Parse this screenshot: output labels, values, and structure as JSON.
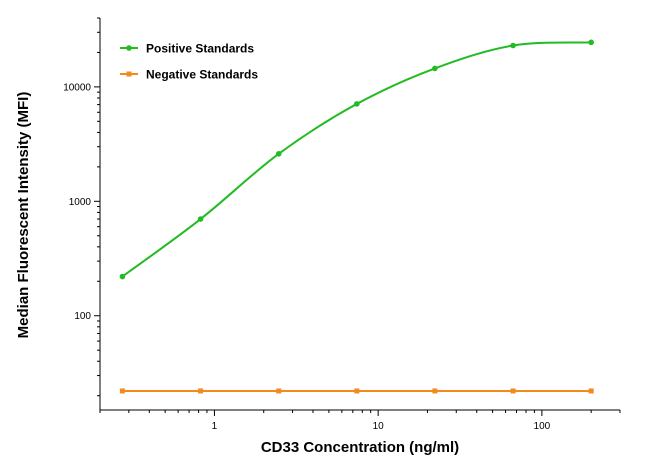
{
  "chart_data": {
    "type": "line",
    "xlabel": "CD33 Concentration (ng/ml)",
    "ylabel": "Median Fluorescent Intensity (MFI)",
    "x_scale": "log",
    "y_scale": "log",
    "xlim": [
      0.2,
      300
    ],
    "ylim": [
      15,
      40000
    ],
    "x_ticks": [
      1,
      10,
      100
    ],
    "x_tick_labels": [
      "1",
      "10",
      "100"
    ],
    "y_ticks": [
      100,
      1000,
      10000
    ],
    "y_tick_labels": [
      "100",
      "1000",
      "10000"
    ],
    "grid": false,
    "legend_position": "top-left",
    "series": [
      {
        "name": "Positive Standards",
        "color": "#22bb22",
        "marker": "circle",
        "x": [
          0.274,
          0.823,
          2.47,
          7.41,
          22.2,
          66.7,
          200
        ],
        "y": [
          220,
          700,
          2600,
          7100,
          14500,
          23000,
          24500
        ],
        "fit": "curve"
      },
      {
        "name": "Negative Standards",
        "color": "#f28a1e",
        "marker": "square",
        "x": [
          0.274,
          0.823,
          2.47,
          7.41,
          22.2,
          66.7,
          200
        ],
        "y": [
          22,
          22,
          22,
          22,
          22,
          22,
          22
        ],
        "fit": "line"
      }
    ]
  }
}
